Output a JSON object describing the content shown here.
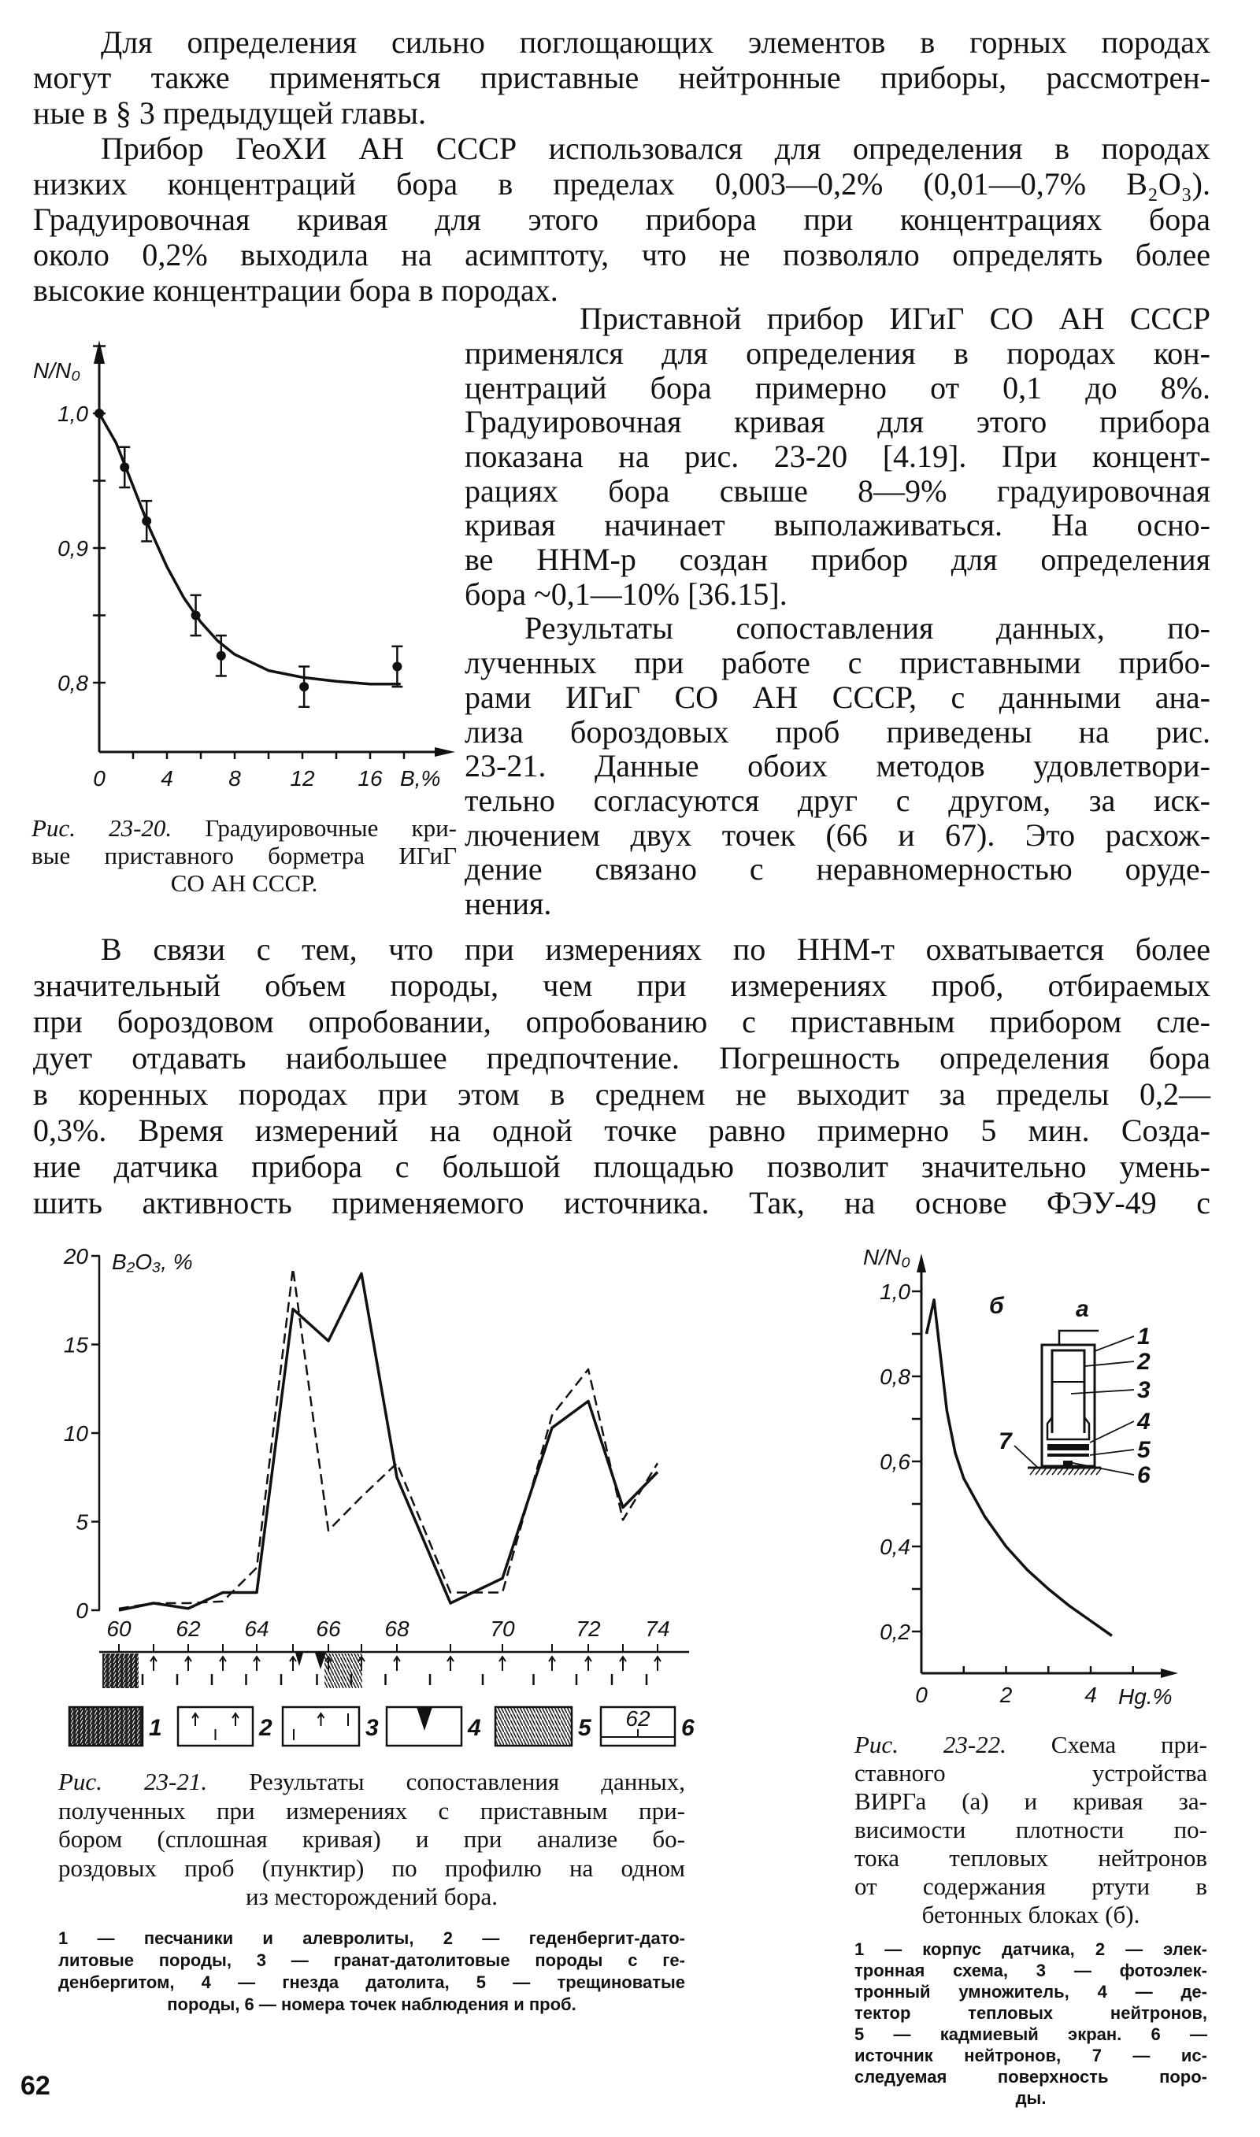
{
  "page_number": "62",
  "paragraphs": [
    {
      "lines": [
        "Для определения сильно поглощающих элементов в горных породах",
        "могут также применяться приставные нейтронные приборы, рассмотрен-",
        "ные в § 3 предыдущей главы."
      ]
    },
    {
      "lines": [
        "Прибор ГеоХИ АН СССР использовался для определения в породах",
        "низких концентраций бора в пределах 0,003—0,2% (0,01—0,7% B₂O₃).",
        "Градуировочная кривая для этого прибора при концентрациях бора",
        "около 0,2% выходила на асимптоту, что не позволяло определять более",
        "высокие концентрации бора в породах."
      ]
    },
    {
      "lines": [
        "Приставной прибор ИГиГ СО АН СССР",
        "применялся для определения в породах кон-",
        "центраций бора примерно от 0,1 до 8%.",
        "Градуировочная кривая для этого прибора",
        "показана на рис. 23-20 [4.19]. При концент-",
        "рациях бора свыше 8—9% градуировочная",
        "кривая начинает выполаживаться. На осно-",
        "ве ННМ-р создан прибор для определения",
        "бора ~0,1—10% [36.15]."
      ]
    },
    {
      "lines": [
        "Результаты сопоставления данных, по-",
        "лученных при работе с приставными прибо-",
        "рами ИГиГ СО АН СССР, с данными ана-",
        "лиза бороздовых проб приведены на рис.",
        "23-21. Данные обоих методов удовлетвори-",
        "тельно согласуются друг с другом, за иск-",
        "лючением двух точек (66 и 67). Это расхож-",
        "дение связано с неравномерностью оруде-",
        "нения."
      ]
    },
    {
      "lines": [
        "В связи с тем, что при измерениях по ННМ-т охватывается более",
        "значительный объем породы, чем при измерениях проб, отбираемых",
        "при бороздовом опробовании, опробованию с приставным прибором сле-",
        "дует отдавать наибольшее предпочтение. Погрешность определения бора",
        "в коренных породах при этом в среднем не выходит за пределы 0,2—",
        "0,3%. Время измерений на одной точке равно примерно 5 мин. Созда-",
        "ние датчика прибора с большой площадью позволит значительно умень-",
        "шить активность применяемого источника. Так, на основе ФЭУ-49 с"
      ]
    }
  ],
  "figures": {
    "fig20": {
      "caption_label": "Рис. 23-20.",
      "caption_lines": [
        "Градуировочные кри-",
        "вые приставного борметра ИГиГ",
        "СО АН СССР."
      ]
    },
    "fig21": {
      "caption_label": "Рис. 23-21.",
      "caption_lines": [
        "Результаты сопоставления данных,",
        "полученных при измерениях с приставным при-",
        "бором (сплошная кривая) и при анализе бо-",
        "роздовых проб (пунктир) по профилю на одном",
        "из месторождений бора."
      ],
      "legend_lines": [
        "1 — песчаники и алевролиты, 2 — геденбергит-дато-",
        "литовые породы, 3 — гранат-датолитовые породы с ге-",
        "денбергитом, 4 — гнезда датолита, 5 — трещиноватые",
        "породы, 6 — номера точек наблюдения и проб."
      ]
    },
    "fig22": {
      "caption_label": "Рис. 23-22.",
      "caption_lines": [
        "Схема при-",
        "ставного устройства",
        "ВИРГа (а) и кривая за-",
        "висимости плотности по-",
        "тока тепловых нейтронов",
        "от содержания ртути в",
        "бетонных блоках (б)."
      ],
      "legend_lines": [
        "1 — корпус датчика, 2 — элек-",
        "тронная схема, 3 — фотоэлек-",
        "тронный умножитель, 4 — де-",
        "тектор тепловых нейтронов,",
        "5 — кадмиевый экран. 6 —",
        "источник нейтронов, 7 — ис-",
        "следуемая поверхность поро-",
        "ды."
      ]
    }
  },
  "chart_data": [
    {
      "type": "scatter",
      "figure": "Рис. 23-20",
      "ylabel": "N/N₀",
      "xlabel": "B,%",
      "xlim": [
        0,
        19
      ],
      "ylim": [
        0.75,
        1.05
      ],
      "x_tick_labels": [
        "0",
        "4",
        "8",
        "12",
        "16"
      ],
      "x_tick_values": [
        0,
        4,
        8,
        12,
        16
      ],
      "y_tick_labels": [
        "1,0",
        "0,9",
        "0,8"
      ],
      "y_tick_values": [
        1.0,
        0.9,
        0.8
      ],
      "grid": false,
      "points": {
        "x": [
          0,
          1.5,
          2.8,
          5.7,
          7.2,
          12.1,
          17.6
        ],
        "y": [
          1.0,
          0.96,
          0.92,
          0.85,
          0.82,
          0.797,
          0.812
        ],
        "error": [
          0,
          0.015,
          0.015,
          0.015,
          0.015,
          0.015,
          0.015
        ]
      },
      "fit_curve": {
        "x": [
          0,
          1,
          2,
          3,
          4,
          5,
          6,
          7,
          8,
          10,
          12,
          14,
          16,
          17.8
        ],
        "y": [
          1.0,
          0.978,
          0.946,
          0.914,
          0.886,
          0.863,
          0.845,
          0.831,
          0.821,
          0.809,
          0.804,
          0.801,
          0.799,
          0.799
        ]
      }
    },
    {
      "type": "line",
      "figure": "Рис. 23-21",
      "ylabel": "B₂O₃, %",
      "ylim": [
        0,
        20
      ],
      "y_tick_labels": [
        "20",
        "15",
        "10",
        "5",
        "0"
      ],
      "y_tick_values": [
        20,
        15,
        10,
        5,
        0
      ],
      "x_tick_labels": [
        "60",
        "62",
        "64",
        "66",
        "68",
        "70",
        "72",
        "74"
      ],
      "x": [
        60,
        61,
        62,
        63,
        64,
        65,
        66,
        67,
        68,
        69,
        70,
        71,
        72,
        73,
        74
      ],
      "grid": false,
      "series": [
        {
          "style": "solid",
          "values": [
            0,
            0.4,
            0.1,
            1.0,
            1.0,
            17.0,
            15.2,
            19.0,
            7.5,
            0.4,
            1.8,
            10.3,
            11.8,
            5.8,
            7.8
          ]
        },
        {
          "style": "dashed",
          "values": [
            0.1,
            0.4,
            0.4,
            0.5,
            2.4,
            19.3,
            4.5,
            6.4,
            8.3,
            1.0,
            1.0,
            11.0,
            13.6,
            5.1,
            8.3
          ]
        }
      ],
      "legend": {
        "item_numbers": [
          "1",
          "2",
          "3",
          "4",
          "5",
          "6"
        ],
        "sample_point_label": "62"
      }
    },
    {
      "type": "line",
      "figure": "Рис. 23-22",
      "panel_label": "б",
      "ylabel": "N/N₀",
      "xlabel": "Hg.%",
      "xlim": [
        0,
        5.5
      ],
      "ylim": [
        0.1,
        1.05
      ],
      "y_tick_labels": [
        "1,0",
        "0,8",
        "0,6",
        "0,4",
        "0,2"
      ],
      "y_tick_values": [
        1.0,
        0.8,
        0.6,
        0.4,
        0.2
      ],
      "x_tick_labels": [
        "0",
        "2",
        "4"
      ],
      "x_tick_values": [
        0,
        2,
        4
      ],
      "grid": false,
      "x": [
        0.3,
        0.45,
        0.6,
        0.8,
        1.0,
        1.5,
        2.0,
        2.5,
        3.0,
        3.5,
        4.0,
        4.5
      ],
      "y": [
        0.98,
        0.85,
        0.72,
        0.62,
        0.56,
        0.47,
        0.4,
        0.345,
        0.3,
        0.26,
        0.225,
        0.19
      ],
      "schematic": {
        "label": "а",
        "part_labels": [
          "1",
          "2",
          "3",
          "4",
          "5",
          "6",
          "7"
        ]
      }
    }
  ]
}
